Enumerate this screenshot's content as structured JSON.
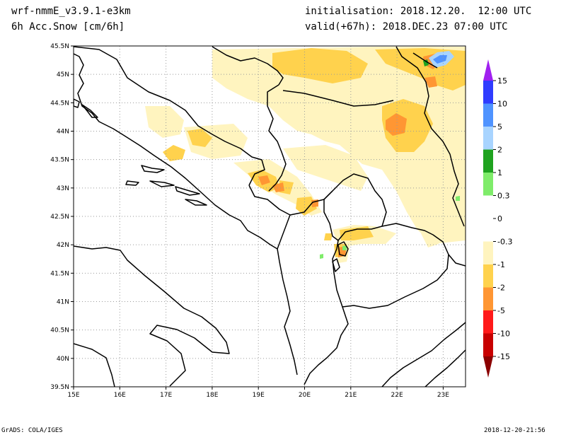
{
  "header": {
    "model": "wrf-nmmE_v3.9.1-e3km",
    "field": "6h Acc.Snow [cm/6h]",
    "init": "initialisation: 2018.12.20.  12:00 UTC",
    "valid": "valid(+67h): 2018.DEC.23 07:00 UTC"
  },
  "footer": {
    "credit": "GrADS: COLA/IGES",
    "timestamp": "2018-12-20-21:56"
  },
  "map": {
    "lat_labels": [
      "45.5N",
      "45N",
      "44.5N",
      "44N",
      "43.5N",
      "43N",
      "42.5N",
      "42N",
      "41.5N",
      "41N",
      "40.5N",
      "40N",
      "39.5N"
    ],
    "lon_labels": [
      "15E",
      "16E",
      "17E",
      "18E",
      "19E",
      "20E",
      "21E",
      "22E",
      "23E"
    ],
    "grid": "dotted"
  },
  "legend": {
    "labels": [
      "15",
      "10",
      "5",
      "2",
      "1",
      "0.3",
      "0",
      "-0.3",
      "-1",
      "-2",
      "-5",
      "-10",
      "-15"
    ],
    "colors_top_to_bottom": [
      "#a020f0",
      "#2f3cff",
      "#4f93ff",
      "#a8d4ff",
      "#1fa31f",
      "#7fec6a",
      "#ffffff",
      "#ffffff",
      "#fff4bf",
      "#ffd24d",
      "#ff9633",
      "#ff1a1a",
      "#c80000",
      "#8b0000"
    ]
  }
}
